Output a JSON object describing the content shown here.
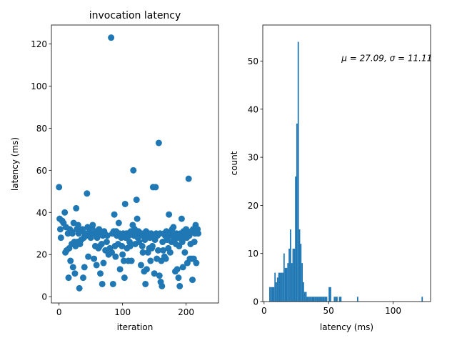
{
  "chart_data": [
    {
      "type": "scatter",
      "title": "invocation latency",
      "xlabel": "iteration",
      "ylabel": "latency (ms)",
      "xlim": [
        -12,
        251
      ],
      "ylim": [
        -3,
        129
      ],
      "xticks": [
        0,
        100,
        200
      ],
      "yticks": [
        0,
        20,
        40,
        60,
        80,
        100,
        120
      ],
      "color": "#1f77b4",
      "grid": false,
      "points": [
        [
          0,
          52
        ],
        [
          1,
          37
        ],
        [
          2,
          32
        ],
        [
          3,
          28
        ],
        [
          5,
          36
        ],
        [
          7,
          35
        ],
        [
          9,
          40
        ],
        [
          10,
          21
        ],
        [
          11,
          33
        ],
        [
          12,
          22
        ],
        [
          14,
          30
        ],
        [
          15,
          9
        ],
        [
          16,
          23
        ],
        [
          17,
          32
        ],
        [
          18,
          17
        ],
        [
          19,
          31
        ],
        [
          20,
          25
        ],
        [
          21,
          30
        ],
        [
          22,
          14
        ],
        [
          23,
          35
        ],
        [
          24,
          26
        ],
        [
          25,
          11
        ],
        [
          26,
          24
        ],
        [
          27,
          42
        ],
        [
          28,
          32
        ],
        [
          29,
          26
        ],
        [
          30,
          34
        ],
        [
          31,
          30
        ],
        [
          32,
          4
        ],
        [
          33,
          25
        ],
        [
          34,
          31
        ],
        [
          35,
          27
        ],
        [
          37,
          32
        ],
        [
          38,
          9
        ],
        [
          39,
          28
        ],
        [
          40,
          14
        ],
        [
          41,
          30
        ],
        [
          43,
          29
        ],
        [
          44,
          49
        ],
        [
          45,
          33
        ],
        [
          46,
          19
        ],
        [
          48,
          31
        ],
        [
          49,
          29
        ],
        [
          50,
          28
        ],
        [
          51,
          30
        ],
        [
          52,
          33
        ],
        [
          53,
          34
        ],
        [
          55,
          18
        ],
        [
          56,
          30
        ],
        [
          57,
          24
        ],
        [
          58,
          31
        ],
        [
          59,
          15
        ],
        [
          60,
          28
        ],
        [
          61,
          30
        ],
        [
          62,
          23
        ],
        [
          63,
          32
        ],
        [
          64,
          24
        ],
        [
          65,
          11
        ],
        [
          66,
          31
        ],
        [
          67,
          25
        ],
        [
          68,
          6
        ],
        [
          69,
          29
        ],
        [
          70,
          16
        ],
        [
          71,
          31
        ],
        [
          72,
          30
        ],
        [
          73,
          22
        ],
        [
          75,
          26
        ],
        [
          76,
          29
        ],
        [
          78,
          20
        ],
        [
          80,
          23
        ],
        [
          82,
          123
        ],
        [
          83,
          21
        ],
        [
          84,
          30
        ],
        [
          85,
          6
        ],
        [
          86,
          31
        ],
        [
          87,
          39
        ],
        [
          88,
          24
        ],
        [
          89,
          19
        ],
        [
          90,
          31
        ],
        [
          91,
          29
        ],
        [
          93,
          25
        ],
        [
          94,
          35
        ],
        [
          95,
          30
        ],
        [
          96,
          13
        ],
        [
          97,
          29
        ],
        [
          98,
          28
        ],
        [
          99,
          24
        ],
        [
          100,
          20
        ],
        [
          101,
          30
        ],
        [
          102,
          17
        ],
        [
          103,
          9
        ],
        [
          104,
          44
        ],
        [
          105,
          28
        ],
        [
          106,
          30
        ],
        [
          107,
          23
        ],
        [
          108,
          30
        ],
        [
          109,
          17
        ],
        [
          110,
          29
        ],
        [
          111,
          26
        ],
        [
          112,
          24
        ],
        [
          113,
          31
        ],
        [
          114,
          17
        ],
        [
          115,
          30
        ],
        [
          116,
          34
        ],
        [
          117,
          60
        ],
        [
          118,
          29
        ],
        [
          119,
          32
        ],
        [
          120,
          25
        ],
        [
          121,
          30
        ],
        [
          122,
          46
        ],
        [
          123,
          37
        ],
        [
          124,
          28
        ],
        [
          125,
          31
        ],
        [
          126,
          26
        ],
        [
          127,
          30
        ],
        [
          128,
          29
        ],
        [
          129,
          15
        ],
        [
          130,
          30
        ],
        [
          131,
          24
        ],
        [
          132,
          21
        ],
        [
          133,
          29
        ],
        [
          134,
          12
        ],
        [
          135,
          27
        ],
        [
          136,
          6
        ],
        [
          137,
          31
        ],
        [
          138,
          13
        ],
        [
          139,
          29
        ],
        [
          140,
          21
        ],
        [
          141,
          30
        ],
        [
          142,
          23
        ],
        [
          143,
          28
        ],
        [
          144,
          17
        ],
        [
          145,
          30
        ],
        [
          146,
          23
        ],
        [
          147,
          24
        ],
        [
          148,
          52
        ],
        [
          149,
          29
        ],
        [
          150,
          11
        ],
        [
          151,
          27
        ],
        [
          152,
          52
        ],
        [
          153,
          30
        ],
        [
          154,
          18
        ],
        [
          155,
          29
        ],
        [
          156,
          22
        ],
        [
          157,
          73
        ],
        [
          158,
          10
        ],
        [
          159,
          30
        ],
        [
          160,
          7
        ],
        [
          161,
          17
        ],
        [
          162,
          5
        ],
        [
          163,
          26
        ],
        [
          164,
          22
        ],
        [
          165,
          30
        ],
        [
          166,
          19
        ],
        [
          167,
          29
        ],
        [
          168,
          18
        ],
        [
          169,
          31
        ],
        [
          170,
          27
        ],
        [
          171,
          30
        ],
        [
          172,
          23
        ],
        [
          173,
          39
        ],
        [
          174,
          29
        ],
        [
          175,
          21
        ],
        [
          176,
          30
        ],
        [
          177,
          26
        ],
        [
          178,
          32
        ],
        [
          179,
          29
        ],
        [
          180,
          33
        ],
        [
          181,
          27
        ],
        [
          182,
          29
        ],
        [
          183,
          12
        ],
        [
          184,
          25
        ],
        [
          185,
          30
        ],
        [
          186,
          13
        ],
        [
          187,
          28
        ],
        [
          188,
          9
        ],
        [
          189,
          24
        ],
        [
          190,
          5
        ],
        [
          191,
          30
        ],
        [
          192,
          28
        ],
        [
          193,
          37
        ],
        [
          194,
          26
        ],
        [
          195,
          14
        ],
        [
          196,
          31
        ],
        [
          197,
          29
        ],
        [
          198,
          21
        ],
        [
          199,
          30
        ],
        [
          200,
          32
        ],
        [
          201,
          28
        ],
        [
          202,
          16
        ],
        [
          203,
          30
        ],
        [
          204,
          56
        ],
        [
          205,
          29
        ],
        [
          206,
          18
        ],
        [
          207,
          25
        ],
        [
          208,
          31
        ],
        [
          209,
          18
        ],
        [
          210,
          8
        ],
        [
          211,
          32
        ],
        [
          212,
          18
        ],
        [
          213,
          26
        ],
        [
          214,
          30
        ],
        [
          215,
          34
        ],
        [
          216,
          16
        ],
        [
          217,
          31
        ],
        [
          218,
          32
        ],
        [
          219,
          30
        ]
      ]
    },
    {
      "type": "histogram",
      "title": "",
      "xlabel": "latency (ms)",
      "ylabel": "count",
      "xlim": [
        -1,
        129
      ],
      "ylim": [
        0,
        57.5
      ],
      "xticks": [
        0,
        50,
        100
      ],
      "yticks": [
        0,
        10,
        20,
        30,
        40,
        50
      ],
      "color": "#1f77b4",
      "grid": false,
      "annotation": "μ = 27.09, σ = 11.11",
      "annotation_pos": [
        60,
        50
      ],
      "bin_width": 1,
      "bins": [
        [
          4,
          3
        ],
        [
          5,
          3
        ],
        [
          6,
          3
        ],
        [
          7,
          3
        ],
        [
          8,
          6
        ],
        [
          9,
          4
        ],
        [
          10,
          5
        ],
        [
          11,
          6
        ],
        [
          12,
          6
        ],
        [
          13,
          6
        ],
        [
          14,
          6
        ],
        [
          15,
          10
        ],
        [
          16,
          7
        ],
        [
          17,
          7
        ],
        [
          18,
          8
        ],
        [
          19,
          11
        ],
        [
          20,
          15
        ],
        [
          21,
          8
        ],
        [
          22,
          11
        ],
        [
          23,
          11
        ],
        [
          24,
          26
        ],
        [
          25,
          37
        ],
        [
          26,
          54
        ],
        [
          27,
          15
        ],
        [
          28,
          12
        ],
        [
          29,
          8
        ],
        [
          30,
          4
        ],
        [
          31,
          2
        ],
        [
          32,
          2
        ],
        [
          33,
          1
        ],
        [
          34,
          1
        ],
        [
          35,
          1
        ],
        [
          36,
          1
        ],
        [
          37,
          1
        ],
        [
          38,
          1
        ],
        [
          39,
          1
        ],
        [
          40,
          1
        ],
        [
          41,
          1
        ],
        [
          42,
          1
        ],
        [
          43,
          1
        ],
        [
          44,
          1
        ],
        [
          45,
          1
        ],
        [
          46,
          1
        ],
        [
          47,
          1
        ],
        [
          48,
          1
        ],
        [
          50,
          3
        ],
        [
          51,
          3
        ],
        [
          54,
          1
        ],
        [
          55,
          1
        ],
        [
          56,
          1
        ],
        [
          58,
          1
        ],
        [
          59,
          1
        ],
        [
          72,
          1
        ],
        [
          122,
          1
        ]
      ]
    }
  ]
}
